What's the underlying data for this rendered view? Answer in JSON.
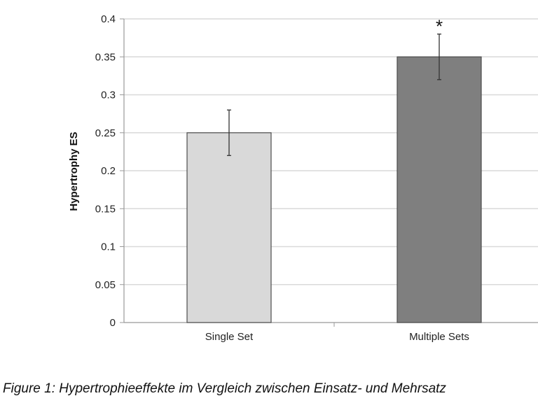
{
  "chart_data": {
    "type": "bar",
    "categories": [
      "Single Set",
      "Multiple Sets"
    ],
    "values": [
      0.25,
      0.35
    ],
    "error": [
      0.03,
      0.03
    ],
    "annotations": [
      "",
      "*"
    ],
    "ylabel": "Hypertrophy ES",
    "ylim": [
      0,
      0.4
    ],
    "yticks": [
      "0",
      "0.05",
      "0.1",
      "0.15",
      "0.2",
      "0.25",
      "0.3",
      "0.35",
      "0.4"
    ],
    "grid": true,
    "bar_colors": [
      "#d9d9d9",
      "#7f7f7f"
    ],
    "grid_color": "#d9d9d9"
  },
  "caption": "Figure 1: Hypertrophieeffekte im Vergleich zwischen Einsatz- und Mehrsatz"
}
